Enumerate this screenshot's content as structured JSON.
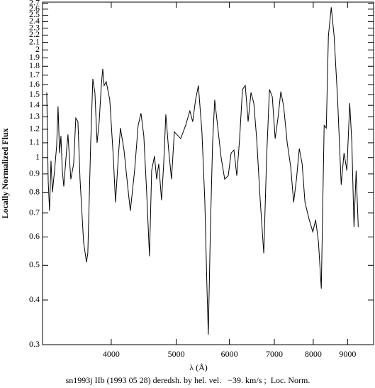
{
  "chart_data": {
    "type": "line",
    "x_label": "λ (Å)",
    "y_label": "Locally Normalized Flux",
    "caption": "sn1993j IIb (1993 05 28) deredsh. by hel. vel.   −39. km/s ;  Loc. Norm.",
    "x_log": true,
    "y_log": true,
    "xlim": [
      3160,
      9840
    ],
    "ylim": [
      0.3,
      2.72
    ],
    "xticks": [
      4000,
      5000,
      6000,
      7000,
      8000,
      9000
    ],
    "yticks": [
      0.3,
      0.4,
      0.5,
      0.6,
      0.7,
      0.8,
      0.9,
      1,
      1.1,
      1.2,
      1.3,
      1.4,
      1.5,
      1.6,
      1.7,
      1.8,
      1.9,
      2,
      2.1,
      2.2,
      2.3,
      2.4,
      2.5,
      2.6,
      2.7
    ],
    "series": [
      {
        "color": "#000000",
        "x": [
          3206,
          3222,
          3237,
          3253,
          3269,
          3293,
          3317,
          3333,
          3350,
          3366,
          3382,
          3399,
          3432,
          3448,
          3482,
          3516,
          3542,
          3568,
          3594,
          3638,
          3674,
          3691,
          3728,
          3755,
          3782,
          3810,
          3838,
          3866,
          3885,
          3904,
          3932,
          3980,
          4029,
          4059,
          4098,
          4128,
          4179,
          4230,
          4271,
          4334,
          4387,
          4430,
          4473,
          4517,
          4561,
          4595,
          4640,
          4674,
          4708,
          4754,
          4789,
          4824,
          4871,
          4919,
          4967,
          5076,
          5163,
          5239,
          5290,
          5342,
          5394,
          5460,
          5514,
          5554,
          5581,
          5622,
          5664,
          5705,
          5761,
          5832,
          5904,
          5976,
          6035,
          6094,
          6154,
          6214,
          6275,
          6336,
          6398,
          6461,
          6524,
          6588,
          6669,
          6751,
          6817,
          6884,
          6951,
          7020,
          7088,
          7158,
          7228,
          7316,
          7406,
          7479,
          7552,
          7626,
          7701,
          7776,
          7891,
          7988,
          8066,
          8145,
          8224,
          8305,
          8366,
          8427,
          8510,
          8593,
          8698,
          8805,
          8891,
          8978,
          9066,
          9133,
          9200,
          9268,
          9336
        ],
        "values": [
          1.52,
          0.86,
          0.71,
          0.98,
          0.8,
          0.92,
          1.08,
          1.39,
          1.03,
          1.15,
          0.92,
          0.83,
          1.05,
          1.16,
          0.87,
          0.96,
          1.29,
          1.26,
          0.87,
          0.58,
          0.51,
          0.54,
          1.1,
          1.66,
          1.52,
          1.1,
          1.26,
          1.59,
          1.77,
          1.59,
          1.63,
          1.45,
          1.0,
          0.75,
          1.0,
          1.21,
          1.05,
          0.84,
          0.71,
          0.92,
          1.23,
          1.33,
          1.15,
          0.8,
          0.53,
          0.92,
          1.01,
          0.87,
          0.96,
          0.76,
          0.96,
          1.32,
          1.05,
          0.87,
          1.18,
          1.13,
          1.23,
          1.35,
          1.26,
          1.45,
          1.59,
          1.18,
          0.76,
          0.44,
          0.32,
          0.64,
          1.1,
          1.45,
          1.23,
          1.0,
          0.87,
          0.89,
          1.03,
          1.05,
          0.89,
          1.13,
          1.55,
          1.59,
          1.26,
          1.52,
          1.42,
          1.13,
          0.76,
          0.54,
          1.0,
          1.55,
          1.48,
          1.13,
          1.29,
          1.53,
          1.39,
          1.1,
          0.94,
          0.75,
          0.87,
          1.06,
          0.96,
          0.75,
          0.67,
          0.62,
          0.67,
          0.58,
          0.43,
          1.23,
          1.21,
          2.19,
          2.63,
          2.19,
          1.45,
          0.84,
          1.03,
          0.92,
          1.42,
          1.1,
          0.64,
          0.92,
          0.64
        ]
      }
    ]
  }
}
